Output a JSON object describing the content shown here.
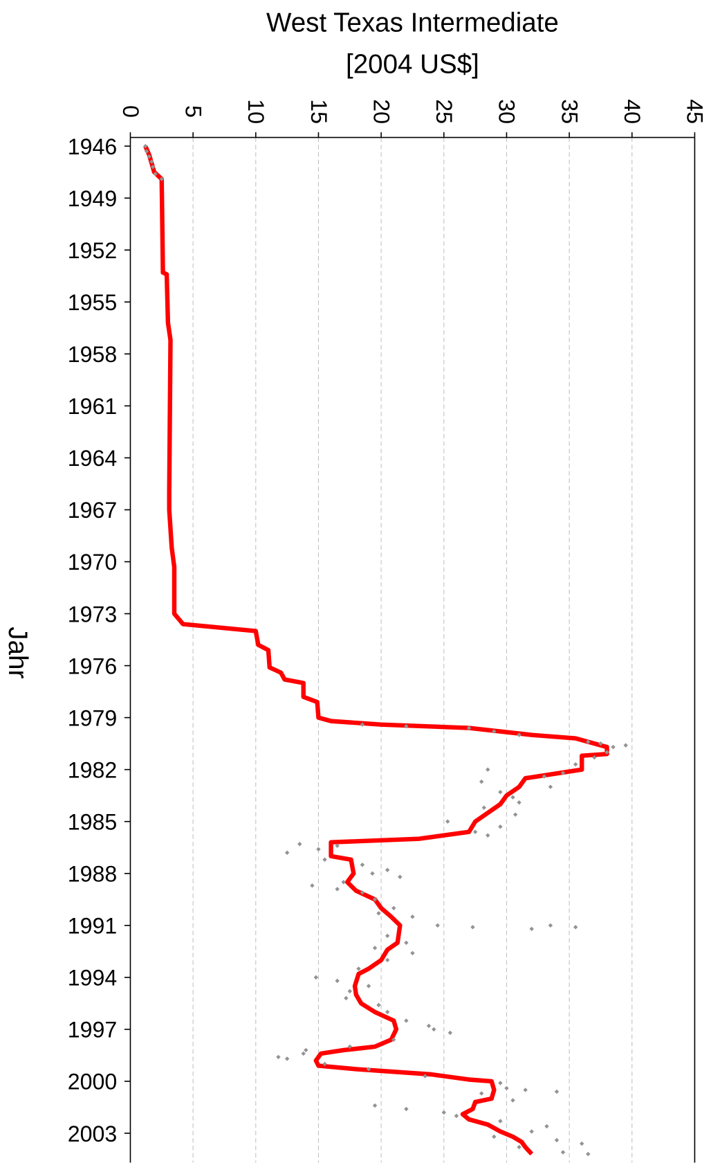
{
  "chart_data": {
    "type": "line",
    "orientation": "horizontal",
    "title": "West Texas Intermediate",
    "subtitle": "[2004 US$]",
    "x_label": "Jahr",
    "xlim": [
      1945.5,
      2004.7
    ],
    "xticks": [
      1946,
      1949,
      1952,
      1955,
      1958,
      1961,
      1964,
      1967,
      1970,
      1973,
      1976,
      1979,
      1982,
      1985,
      1988,
      1991,
      1994,
      1997,
      2000,
      2003
    ],
    "ylim": [
      0,
      45
    ],
    "yticks": [
      0,
      5,
      10,
      15,
      20,
      25,
      30,
      35,
      40,
      45
    ],
    "grid": true,
    "line": {
      "color": "#ff0000",
      "x": [
        1946.0,
        1946.5,
        1947.0,
        1947.5,
        1947.9,
        1953.3,
        1953.4,
        1956.2,
        1957.2,
        1966.0,
        1967.0,
        1969.2,
        1970.3,
        1973.0,
        1973.6,
        1974.0,
        1974.8,
        1975.1,
        1976.1,
        1976.4,
        1976.8,
        1977.0,
        1977.8,
        1978.1,
        1979.0,
        1979.2,
        1979.4,
        1979.6,
        1980.0,
        1980.2,
        1980.7,
        1981.1,
        1981.2,
        1982.0,
        1982.5,
        1983.0,
        1983.5,
        1984.0,
        1984.5,
        1985.0,
        1985.6,
        1986.0,
        1986.2,
        1987.0,
        1987.2,
        1988.0,
        1988.5,
        1989.0,
        1989.5,
        1990.0,
        1990.5,
        1991.0,
        1992.0,
        1992.4,
        1993.0,
        1993.5,
        1993.8,
        1994.5,
        1995.0,
        1995.5,
        1996.0,
        1996.5,
        1997.0,
        1997.6,
        1998.0,
        1998.2,
        1998.4,
        1998.8,
        1999.1,
        1999.3,
        1999.6,
        1999.9,
        2000.0,
        2000.5,
        2001.0,
        2001.2,
        2001.6,
        2001.9,
        2002.2,
        2002.5,
        2002.9,
        2003.2,
        2003.5,
        2003.8,
        2004.2
      ],
      "values": [
        1.2,
        1.5,
        1.7,
        1.9,
        2.5,
        2.6,
        2.9,
        3.0,
        3.2,
        3.1,
        3.1,
        3.3,
        3.5,
        3.5,
        4.2,
        10,
        10.2,
        11,
        11.1,
        12,
        12.3,
        13.8,
        13.8,
        14.9,
        15.0,
        16,
        20,
        27,
        32,
        35.5,
        38,
        38,
        36,
        36,
        31.5,
        31,
        30,
        29.5,
        28.5,
        27.5,
        27,
        23,
        16,
        16,
        17.6,
        17.8,
        17.3,
        18,
        19.5,
        20,
        20.8,
        21.5,
        21.3,
        20.5,
        20,
        19,
        18.2,
        17.9,
        18,
        18.4,
        19.5,
        21,
        21.2,
        20.8,
        19.5,
        17,
        15.2,
        14.8,
        15.0,
        18,
        24,
        27,
        28.8,
        29,
        28.8,
        27.5,
        27.3,
        26.5,
        27,
        28.5,
        29.5,
        30.5,
        31.2,
        31.5,
        32
      ]
    },
    "points": {
      "color": "#939393",
      "x": [
        1946.0,
        1946.3,
        1946.6,
        1946.9,
        1947.2,
        1947.6,
        1947.9,
        1979.4,
        1979.5,
        1979.6,
        1979.8,
        1980.0,
        1980.4,
        1980.5,
        1980.6,
        1980.7,
        1981.0,
        1981.3,
        1981.7,
        1982.0,
        1982.2,
        1982.4,
        1982.7,
        1983.0,
        1983.3,
        1983.6,
        1983.9,
        1984.2,
        1984.6,
        1985.0,
        1985.3,
        1985.6,
        1985.8,
        1986.3,
        1986.4,
        1986.6,
        1986.8,
        1987.2,
        1987.5,
        1987.8,
        1988.0,
        1988.2,
        1988.5,
        1988.7,
        1988.9,
        1989.1,
        1989.5,
        1990.0,
        1990.3,
        1990.5,
        1991.0,
        1991.1,
        1991.2,
        1991.0,
        1991.1,
        1991.6,
        1992.0,
        1992.3,
        1992.6,
        1993.0,
        1993.5,
        1994.0,
        1994.2,
        1994.5,
        1994.8,
        1995.2,
        1995.6,
        1996.0,
        1996.5,
        1996.8,
        1997.0,
        1997.2,
        1997.6,
        1998.0,
        1998.2,
        1998.4,
        1998.6,
        1998.7,
        1999.0,
        1999.3,
        1999.7,
        2000.1,
        2000.4,
        2000.5,
        2000.6,
        2000.7,
        2001.1,
        2001.4,
        2001.6,
        2001.8,
        2002.0,
        2002.3,
        2002.6,
        2002.9,
        2003.2,
        2003.4,
        2003.6,
        2003.8,
        2004.1,
        2004.2
      ],
      "values": [
        1.2,
        1.3,
        1.5,
        1.7,
        1.8,
        2.0,
        2.5,
        18.5,
        22,
        27,
        29,
        31,
        36.5,
        37.5,
        39.5,
        38.5,
        38,
        37,
        35.5,
        28.5,
        34.5,
        33,
        28,
        33.5,
        29.5,
        30.5,
        31,
        28.2,
        30.7,
        25.3,
        29.5,
        27.5,
        28.5,
        13.5,
        16.5,
        15,
        12.5,
        15.5,
        18.5,
        20.5,
        19.3,
        21.5,
        17,
        14.5,
        16.5,
        18.5,
        19.5,
        21,
        19.8,
        22.5,
        24.5,
        27.3,
        32,
        33.5,
        35.5,
        20.5,
        22,
        19.5,
        22.5,
        20.5,
        18.2,
        14.8,
        16.5,
        19,
        17.5,
        17.2,
        19.8,
        20.5,
        22,
        23.8,
        24.2,
        25.5,
        21,
        17.5,
        14,
        13.8,
        11.8,
        12.5,
        15.5,
        19,
        23.5,
        29.5,
        30,
        31.5,
        34,
        28,
        30.5,
        19.5,
        22,
        25,
        26,
        29.5,
        33.2,
        32,
        29,
        34,
        36,
        31,
        34.5,
        36.5
      ]
    }
  }
}
